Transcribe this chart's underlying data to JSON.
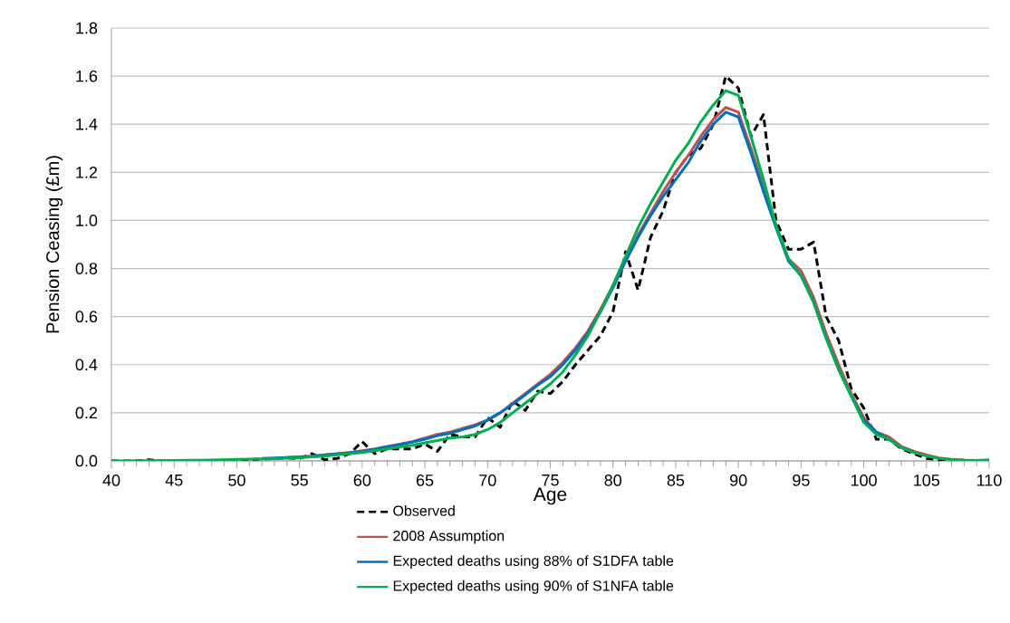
{
  "chart_data": {
    "type": "line",
    "xlabel": "Age",
    "ylabel": "Pension Ceasing (£m)",
    "x": [
      40,
      41,
      42,
      43,
      44,
      45,
      46,
      47,
      48,
      49,
      50,
      51,
      52,
      53,
      54,
      55,
      56,
      57,
      58,
      59,
      60,
      61,
      62,
      63,
      64,
      65,
      66,
      67,
      68,
      69,
      70,
      71,
      72,
      73,
      74,
      75,
      76,
      77,
      78,
      79,
      80,
      81,
      82,
      83,
      84,
      85,
      86,
      87,
      88,
      89,
      90,
      91,
      92,
      93,
      94,
      95,
      96,
      97,
      98,
      99,
      100,
      101,
      102,
      103,
      104,
      105,
      106,
      107,
      108,
      109,
      110
    ],
    "series": [
      {
        "name": "Observed",
        "color": "#000000",
        "line_style": "dashed",
        "values": [
          0,
          0,
          0,
          0.005,
          0,
          0,
          0,
          0.002,
          0,
          0.003,
          0.005,
          0.005,
          0.008,
          0.01,
          0.012,
          0.01,
          0.03,
          0.005,
          0.01,
          0.03,
          0.08,
          0.03,
          0.05,
          0.05,
          0.05,
          0.07,
          0.04,
          0.11,
          0.1,
          0.1,
          0.18,
          0.14,
          0.25,
          0.21,
          0.29,
          0.28,
          0.33,
          0.4,
          0.46,
          0.52,
          0.62,
          0.87,
          0.71,
          0.93,
          1.04,
          1.2,
          1.27,
          1.3,
          1.4,
          1.6,
          1.55,
          1.35,
          1.44,
          1.0,
          0.88,
          0.88,
          0.91,
          0.6,
          0.5,
          0.3,
          0.22,
          0.09,
          0.09,
          0.05,
          0.03,
          0.01,
          0.005,
          0,
          0,
          null,
          null
        ]
      },
      {
        "name": "2008 Assumption",
        "color": "#c0504d",
        "line_style": "solid",
        "values": [
          null,
          null,
          null,
          null,
          null,
          null,
          null,
          null,
          null,
          null,
          null,
          null,
          null,
          null,
          0.014,
          0.017,
          0.02,
          0.025,
          0.03,
          0.035,
          0.042,
          0.05,
          0.06,
          0.07,
          0.08,
          0.095,
          0.11,
          0.12,
          0.135,
          0.15,
          0.17,
          0.2,
          0.24,
          0.28,
          0.32,
          0.36,
          0.41,
          0.47,
          0.54,
          0.63,
          0.73,
          0.84,
          0.94,
          1.03,
          1.12,
          1.2,
          1.27,
          1.35,
          1.42,
          1.47,
          1.45,
          1.3,
          1.14,
          0.98,
          0.84,
          0.79,
          0.68,
          0.53,
          0.4,
          0.28,
          0.18,
          0.12,
          0.1,
          0.06,
          0.04,
          0.025,
          0.012,
          0.007,
          0.004,
          null,
          null
        ]
      },
      {
        "name": "Expected deaths using 88% of S1DFA table",
        "color": "#0070c0",
        "line_style": "solid",
        "values": [
          null,
          null,
          null,
          null,
          null,
          null,
          null,
          null,
          null,
          null,
          null,
          null,
          0.01,
          0.012,
          0.014,
          0.016,
          0.019,
          0.024,
          0.029,
          0.034,
          0.04,
          0.048,
          0.058,
          0.068,
          0.078,
          0.09,
          0.105,
          0.115,
          0.13,
          0.145,
          0.17,
          0.2,
          0.235,
          0.275,
          0.315,
          0.35,
          0.4,
          0.46,
          0.53,
          0.62,
          0.72,
          0.83,
          0.93,
          1.02,
          1.1,
          1.17,
          1.24,
          1.33,
          1.4,
          1.45,
          1.43,
          1.28,
          1.12,
          0.97,
          0.83,
          0.77,
          0.66,
          0.51,
          0.38,
          0.27,
          0.17,
          0.12,
          0.09,
          0.055,
          0.035,
          null,
          null,
          null,
          null,
          null,
          null
        ]
      },
      {
        "name": "Expected deaths using 90% of S1NFA table",
        "color": "#00b050",
        "line_style": "solid",
        "values": [
          0,
          0,
          0.001,
          0.001,
          0.002,
          0.002,
          0.003,
          0.003,
          0.004,
          0.005,
          0.006,
          0.007,
          0.008,
          0.009,
          0.011,
          0.013,
          0.017,
          0.02,
          0.025,
          0.03,
          0.035,
          0.042,
          0.05,
          0.058,
          0.065,
          0.075,
          0.085,
          0.095,
          0.1,
          0.11,
          0.13,
          0.16,
          0.2,
          0.24,
          0.28,
          0.32,
          0.37,
          0.44,
          0.52,
          0.62,
          0.73,
          0.85,
          0.97,
          1.07,
          1.16,
          1.25,
          1.32,
          1.41,
          1.48,
          1.54,
          1.52,
          1.35,
          1.17,
          0.98,
          0.84,
          0.77,
          0.66,
          0.51,
          0.38,
          0.27,
          0.16,
          0.11,
          0.09,
          0.055,
          0.035,
          0.02,
          0.01,
          0.005,
          0.003,
          0.002,
          0.005
        ]
      }
    ],
    "xlim": [
      40,
      110
    ],
    "xticks": [
      40,
      45,
      50,
      55,
      60,
      65,
      70,
      75,
      80,
      85,
      90,
      95,
      100,
      105,
      110
    ],
    "ylim": [
      0,
      1.8
    ],
    "yticks": [
      {
        "value": 0,
        "label": "0.0"
      },
      {
        "value": 0.2,
        "label": "0.2"
      },
      {
        "value": 0.4,
        "label": "0.4"
      },
      {
        "value": 0.6,
        "label": "0.6"
      },
      {
        "value": 0.8,
        "label": "0.8"
      },
      {
        "value": 1.0,
        "label": "1.0"
      },
      {
        "value": 1.2,
        "label": "1.2"
      },
      {
        "value": 1.4,
        "label": "1.4"
      },
      {
        "value": 1.6,
        "label": "1.6"
      },
      {
        "value": 1.8,
        "label": "1.8"
      }
    ],
    "grid": "y",
    "legend": "bottom",
    "marker": "none"
  }
}
